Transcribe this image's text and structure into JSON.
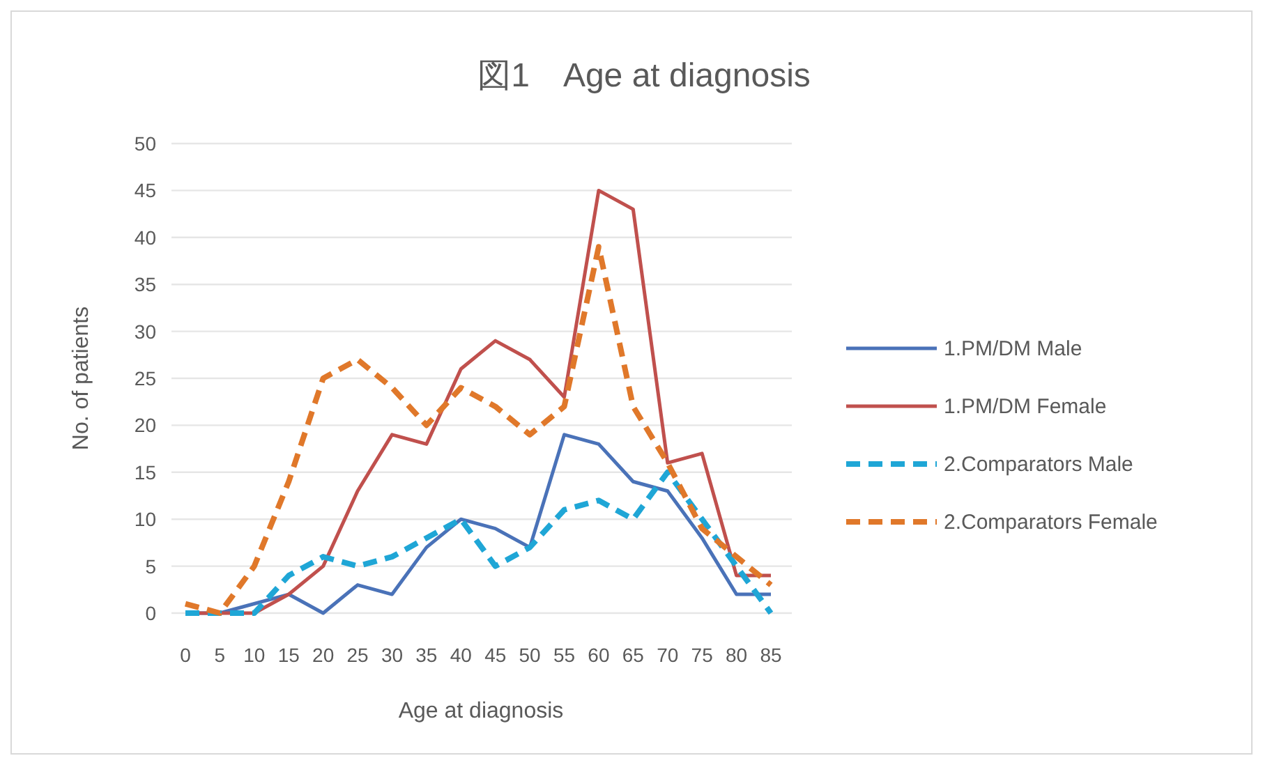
{
  "chart_data": {
    "type": "line",
    "title": "図1　Age at diagnosis",
    "xlabel": "Age at diagnosis",
    "ylabel": "No. of patients",
    "categories": [
      "0",
      "5",
      "10",
      "15",
      "20",
      "25",
      "30",
      "35",
      "40",
      "45",
      "50",
      "55",
      "60",
      "65",
      "70",
      "75",
      "80",
      "85"
    ],
    "ylim": [
      0,
      50
    ],
    "yticks": [
      0,
      5,
      10,
      15,
      20,
      25,
      30,
      35,
      40,
      45,
      50
    ],
    "grid": "y",
    "legend": "right",
    "marker": "none",
    "series": [
      {
        "name": "1.PM/DM Male",
        "color": "#4a72b8",
        "line_style": "solid",
        "values": [
          0,
          0,
          1,
          2,
          0,
          3,
          2,
          7,
          10,
          9,
          7,
          19,
          18,
          14,
          13,
          8,
          2,
          2
        ]
      },
      {
        "name": "1.PM/DM Female",
        "color": "#c0504d",
        "line_style": "solid",
        "values": [
          0,
          0,
          0,
          2,
          5,
          13,
          19,
          18,
          26,
          29,
          27,
          23,
          45,
          43,
          16,
          17,
          4,
          4
        ]
      },
      {
        "name": "2.Comparators Male",
        "color": "#1fa6d6",
        "line_style": "dashed",
        "values": [
          0,
          0,
          0,
          4,
          6,
          5,
          6,
          8,
          10,
          5,
          7,
          11,
          12,
          10,
          15,
          10,
          5,
          0
        ]
      },
      {
        "name": "2.Comparators Female",
        "color": "#e0782a",
        "line_style": "dashed",
        "values": [
          1,
          0,
          5,
          14,
          25,
          27,
          24,
          20,
          24,
          22,
          19,
          22,
          39,
          22,
          16,
          9,
          6,
          3
        ]
      }
    ]
  }
}
